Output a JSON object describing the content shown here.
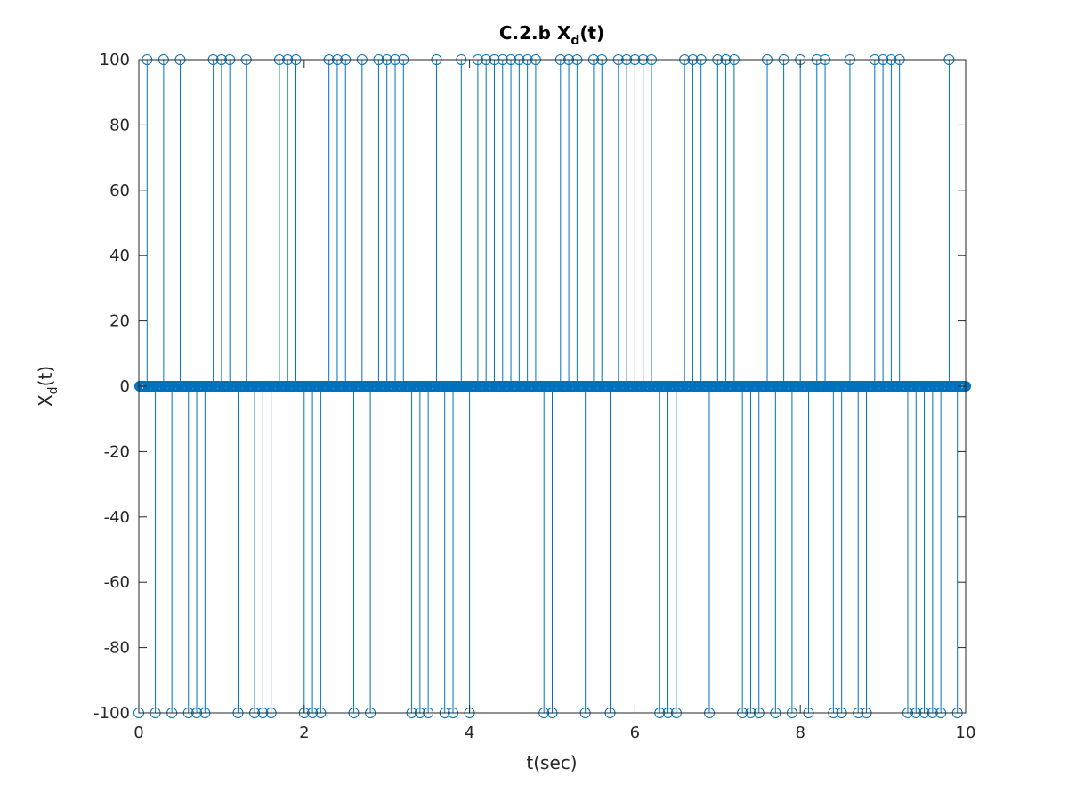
{
  "chart_data": {
    "type": "stem",
    "title": "C.2.b X",
    "title_subscript": "d",
    "title_suffix": "(t)",
    "xlabel": "t(sec)",
    "ylabel_main": "X",
    "ylabel_subscript": "d",
    "ylabel_suffix": "(t)",
    "xlim": [
      0,
      10
    ],
    "ylim": [
      -100,
      100
    ],
    "x_ticks": [
      0,
      2,
      4,
      6,
      8,
      10
    ],
    "x_tick_labels": [
      "0",
      "2",
      "4",
      "6",
      "8",
      "10"
    ],
    "y_ticks": [
      -100,
      -80,
      -60,
      -40,
      -20,
      0,
      20,
      40,
      60,
      80,
      100
    ],
    "y_tick_labels": [
      "-100",
      "-80",
      "-60",
      "-40",
      "-20",
      "0",
      "20",
      "40",
      "60",
      "80",
      "100"
    ],
    "series_color": "#0072BD",
    "sample_step": 0.01,
    "t_plus_100": [
      0.1,
      0.3,
      0.5,
      0.9,
      1.0,
      1.1,
      1.3,
      1.7,
      1.8,
      1.9,
      2.3,
      2.4,
      2.5,
      2.7,
      2.9,
      3.0,
      3.1,
      3.2,
      3.6,
      3.9,
      4.1,
      4.2,
      4.3,
      4.4,
      4.5,
      4.6,
      4.7,
      4.8,
      5.1,
      5.2,
      5.3,
      5.5,
      5.6,
      5.8,
      5.9,
      6.0,
      6.1,
      6.2,
      6.6,
      6.7,
      6.8,
      7.0,
      7.1,
      7.2,
      7.6,
      7.8,
      8.0,
      8.2,
      8.3,
      8.6,
      8.9,
      9.0,
      9.1,
      9.2,
      9.8
    ],
    "t_minus_100": [
      0.0,
      0.2,
      0.4,
      0.6,
      0.7,
      0.8,
      1.2,
      1.4,
      1.5,
      1.6,
      2.0,
      2.1,
      2.2,
      2.6,
      2.8,
      3.3,
      3.4,
      3.5,
      3.7,
      3.8,
      4.0,
      4.9,
      5.0,
      5.4,
      5.7,
      6.3,
      6.4,
      6.5,
      6.9,
      7.3,
      7.4,
      7.5,
      7.7,
      7.9,
      8.1,
      8.4,
      8.5,
      8.7,
      8.8,
      9.3,
      9.4,
      9.5,
      9.6,
      9.7,
      9.9
    ]
  }
}
